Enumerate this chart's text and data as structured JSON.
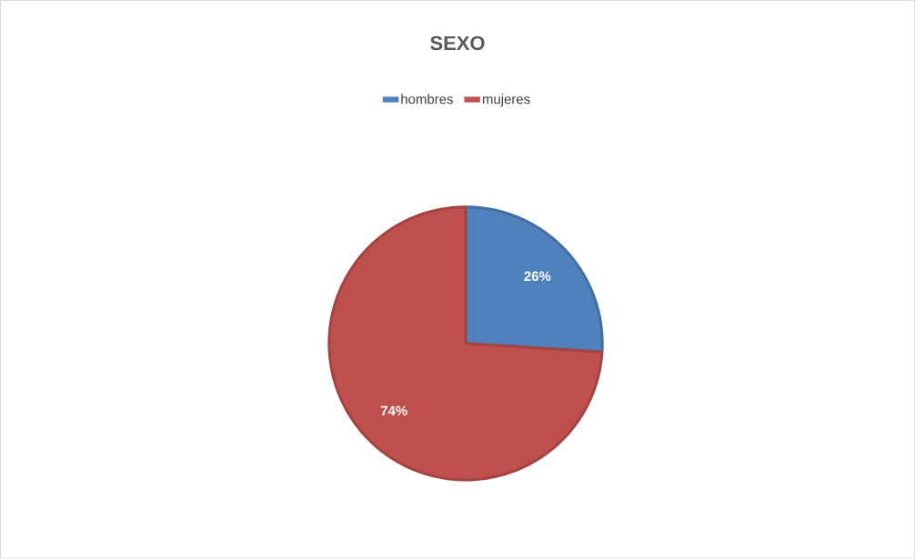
{
  "chart_data": {
    "type": "pie",
    "title": "SEXO",
    "categories": [
      "hombres",
      "mujeres"
    ],
    "values": [
      26,
      74
    ],
    "colors": [
      "#4f81bd",
      "#c0504d"
    ],
    "value_labels": [
      "26%",
      "74%"
    ],
    "legend": "top"
  }
}
